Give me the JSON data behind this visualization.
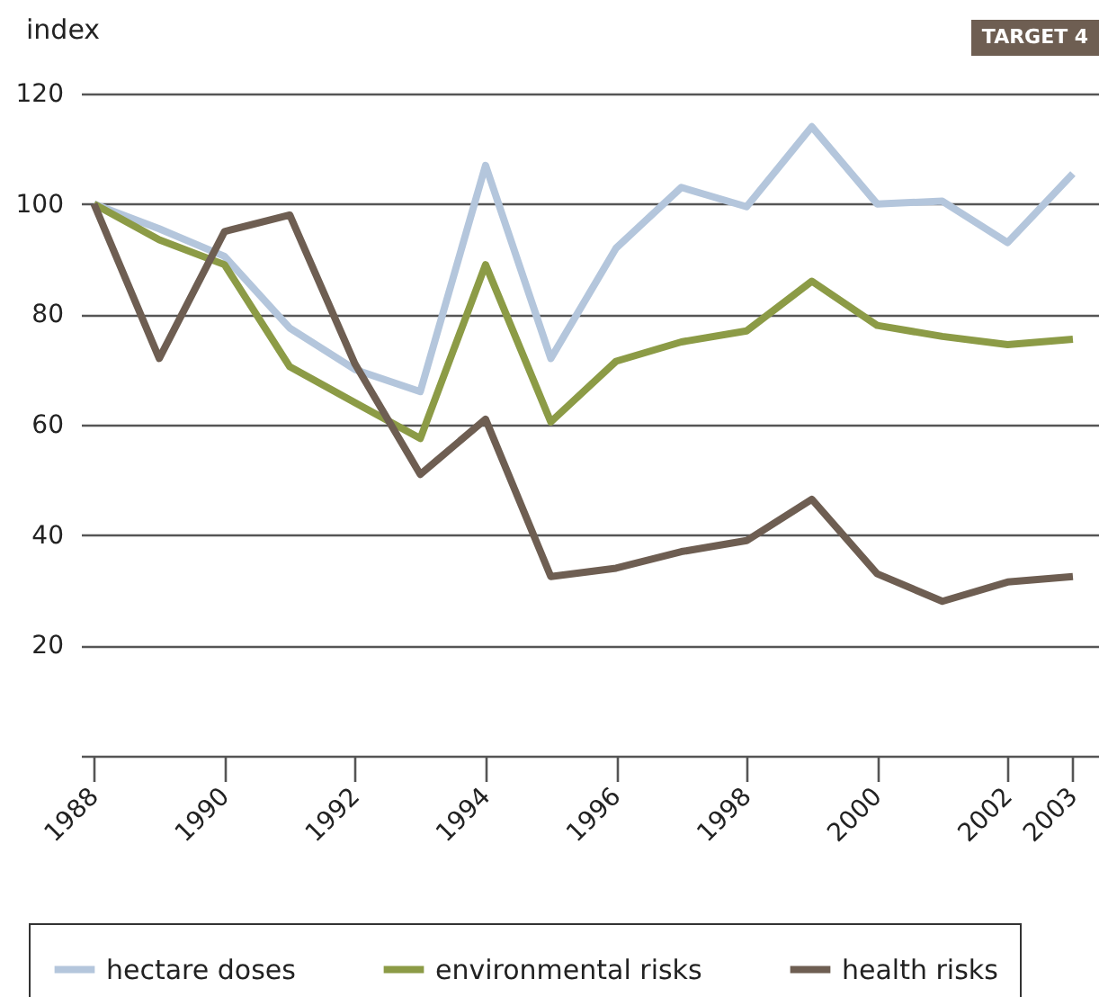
{
  "chart_data": {
    "type": "line",
    "ylabel": "index",
    "annotations": [
      "TARGET 4"
    ],
    "x": [
      1988,
      1989,
      1990,
      1991,
      1992,
      1993,
      1994,
      1995,
      1996,
      1997,
      1998,
      1999,
      2000,
      2001,
      2002,
      2003
    ],
    "series": [
      {
        "name": "hectare doses",
        "color": "#b4c6dc",
        "values": [
          100,
          95.5,
          90.5,
          77.5,
          70,
          66,
          107,
          72,
          92,
          103,
          99.5,
          114,
          100,
          100.5,
          93,
          105.5
        ]
      },
      {
        "name": "environmental risks",
        "color": "#8c9b46",
        "values": [
          100,
          93.5,
          89,
          70.5,
          64,
          57.5,
          89,
          60.5,
          71.5,
          75,
          77,
          86,
          78,
          76,
          74.5,
          75.5
        ]
      },
      {
        "name": "health risks",
        "color": "#6e5e52",
        "values": [
          100,
          72,
          95,
          98,
          71,
          51,
          61,
          32.5,
          34,
          37,
          39,
          46.5,
          33,
          28,
          31.5,
          32.5
        ]
      }
    ],
    "xlim": [
      1987.8,
      2003.4
    ],
    "xticks": [
      1988,
      1990,
      1992,
      1994,
      1996,
      1998,
      2000,
      2002,
      2003
    ],
    "ylim": [
      0,
      120
    ],
    "yticks": [
      20,
      40,
      60,
      80,
      100,
      120
    ],
    "grid": "y",
    "legend": "bottom",
    "marker": "none",
    "line_style": "solid"
  }
}
